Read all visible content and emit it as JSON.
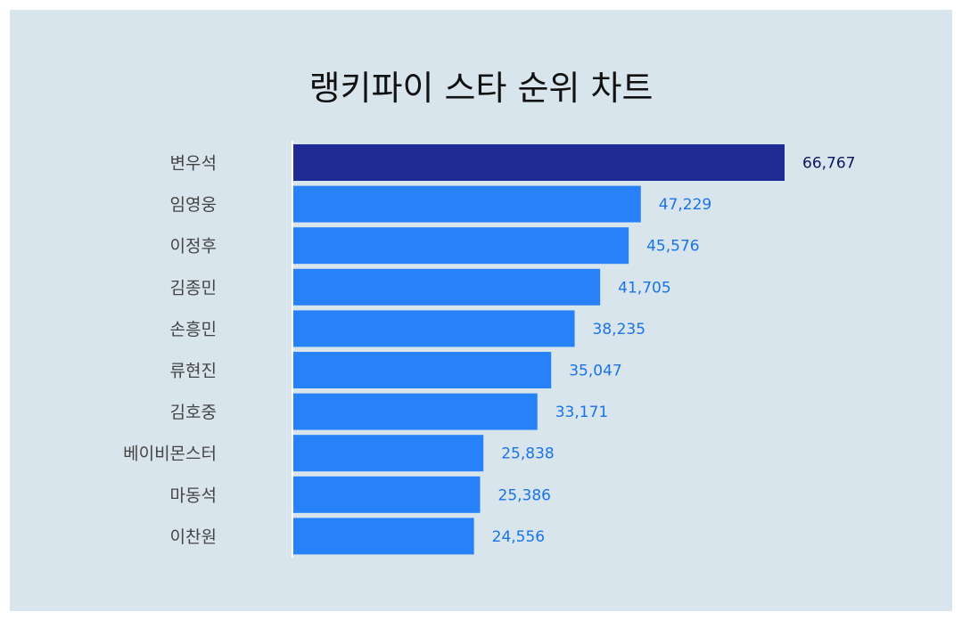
{
  "chart_data": {
    "type": "bar",
    "orientation": "horizontal",
    "title": "랭키파이 스타 순위 차트",
    "categories": [
      "변우석",
      "임영웅",
      "이정후",
      "김종민",
      "손흥민",
      "류현진",
      "김호중",
      "베이비몬스터",
      "마동석",
      "이찬원"
    ],
    "values": [
      66767,
      47229,
      45576,
      41705,
      38235,
      35047,
      33171,
      25838,
      25386,
      24556
    ],
    "value_labels": [
      "66,767",
      "47,229",
      "45,576",
      "41,705",
      "38,235",
      "35,047",
      "33,171",
      "25,838",
      "25,386",
      "24,556"
    ],
    "xlim": [
      0,
      66767
    ],
    "grid": false,
    "legend": "none"
  },
  "colors": {
    "panel_background": "#d9e5ec",
    "bar_top": "#1f2a94",
    "bar": "#2681fa",
    "label_top": "#0d1561",
    "label": "#1a73e8",
    "axis_line": "#ffffff"
  }
}
